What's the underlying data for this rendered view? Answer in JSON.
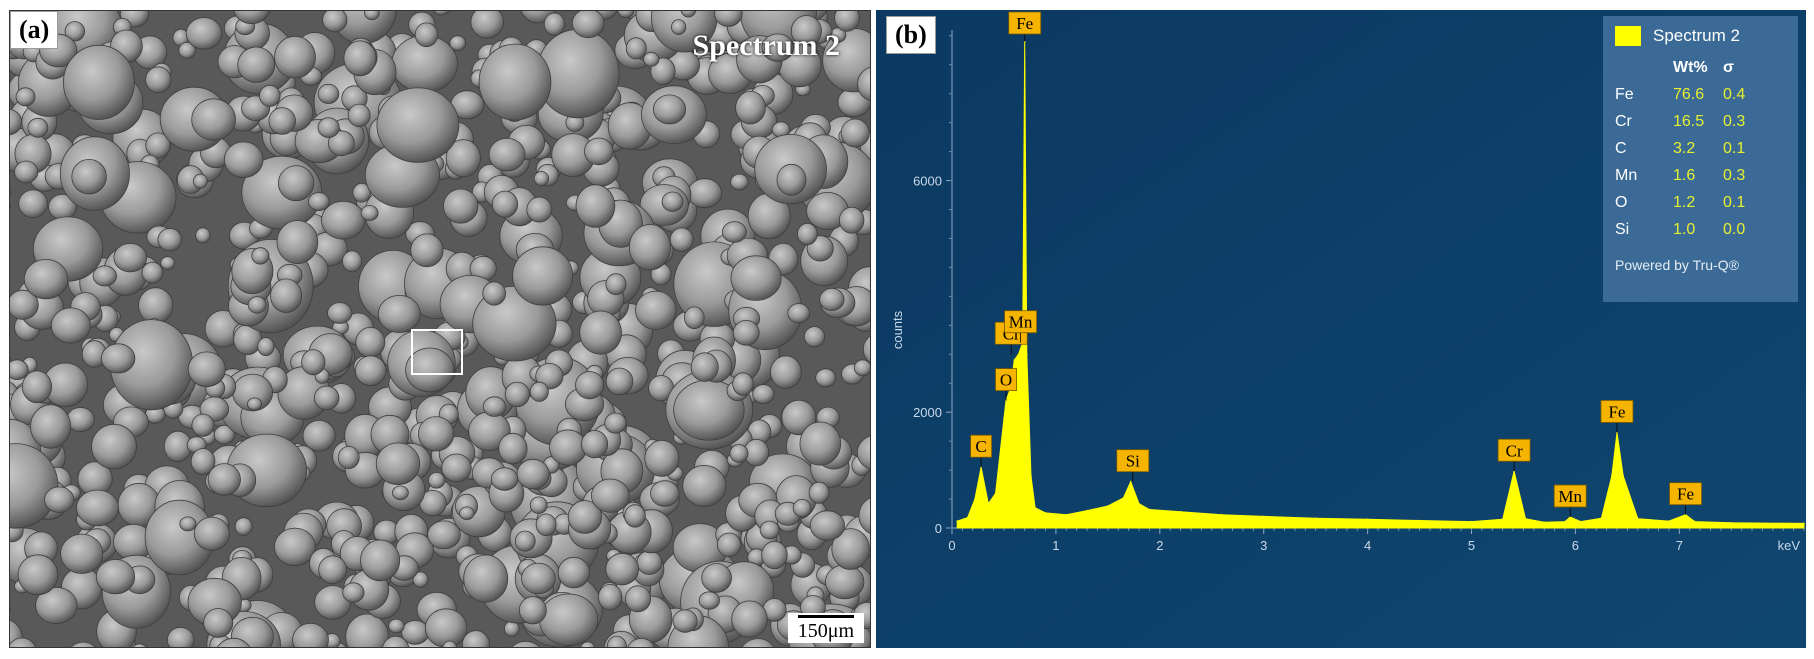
{
  "panel_a": {
    "tag": "(a)",
    "spectrum_label": "Spectrum 2",
    "scale_bar_label": "150μm"
  },
  "panel_b": {
    "tag": "(b)",
    "colors": {
      "background": "#0d3d66",
      "spectrum": "#ffff00",
      "peak_label_bg": "#f5b400"
    },
    "quant": {
      "title": "Spectrum 2",
      "header": {
        "el": "",
        "wt": "Wt%",
        "sigma": "σ"
      },
      "rows": [
        {
          "el": "Fe",
          "wt": "76.6",
          "sigma": "0.4"
        },
        {
          "el": "Cr",
          "wt": "16.5",
          "sigma": "0.3"
        },
        {
          "el": "C",
          "wt": "3.2",
          "sigma": "0.1"
        },
        {
          "el": "Mn",
          "wt": "1.6",
          "sigma": "0.3"
        },
        {
          "el": "O",
          "wt": "1.2",
          "sigma": "0.1"
        },
        {
          "el": "Si",
          "wt": "1.0",
          "sigma": "0.0"
        }
      ],
      "footer": "Powered by Tru-Q®"
    }
  },
  "chart_data": {
    "type": "area",
    "xlabel": "keV",
    "ylabel": "counts",
    "xlim": [
      0,
      8.2
    ],
    "ylim": [
      0,
      8600
    ],
    "x_ticks": [
      "0",
      "1",
      "2",
      "3",
      "4",
      "5",
      "6",
      "7"
    ],
    "y_ticks": [
      "0",
      "2000",
      "6000"
    ],
    "grid": false,
    "legend_position": "top-right",
    "series": [
      {
        "x": [
          0.05,
          0.15,
          0.22,
          0.28,
          0.35,
          0.42,
          0.5,
          0.52,
          0.56,
          0.6,
          0.64,
          0.68,
          0.7,
          0.72,
          0.76,
          0.8,
          0.9,
          1.1,
          1.3,
          1.5,
          1.65,
          1.72,
          1.8,
          1.9,
          2.2,
          2.6,
          3.0,
          3.5,
          4.0,
          4.5,
          5.0,
          5.3,
          5.41,
          5.52,
          5.7,
          5.9,
          5.95,
          6.05,
          6.25,
          6.35,
          6.4,
          6.46,
          6.6,
          6.9,
          7.06,
          7.15,
          7.5,
          8.2
        ],
        "y": [
          120,
          180,
          500,
          1050,
          420,
          600,
          1900,
          2200,
          2400,
          2900,
          3000,
          3200,
          8400,
          3000,
          900,
          350,
          260,
          230,
          300,
          380,
          520,
          800,
          420,
          320,
          280,
          230,
          200,
          170,
          150,
          130,
          110,
          150,
          980,
          160,
          100,
          110,
          190,
          110,
          170,
          900,
          1650,
          900,
          160,
          120,
          230,
          110,
          90,
          80
        ]
      }
    ],
    "annotations": [
      {
        "text": "C",
        "x": 0.28,
        "y": 1050
      },
      {
        "text": "O",
        "x": 0.52,
        "y": 2200
      },
      {
        "text": "Cr",
        "x": 0.57,
        "y": 3000
      },
      {
        "text": "Mn",
        "x": 0.66,
        "y": 3200
      },
      {
        "text": "Fe",
        "x": 0.7,
        "y": 8400
      },
      {
        "text": "Si",
        "x": 1.74,
        "y": 800
      },
      {
        "text": "Cr",
        "x": 5.41,
        "y": 980
      },
      {
        "text": "Mn",
        "x": 5.95,
        "y": 190
      },
      {
        "text": "Fe",
        "x": 6.4,
        "y": 1650
      },
      {
        "text": "Fe",
        "x": 7.06,
        "y": 230
      }
    ]
  }
}
